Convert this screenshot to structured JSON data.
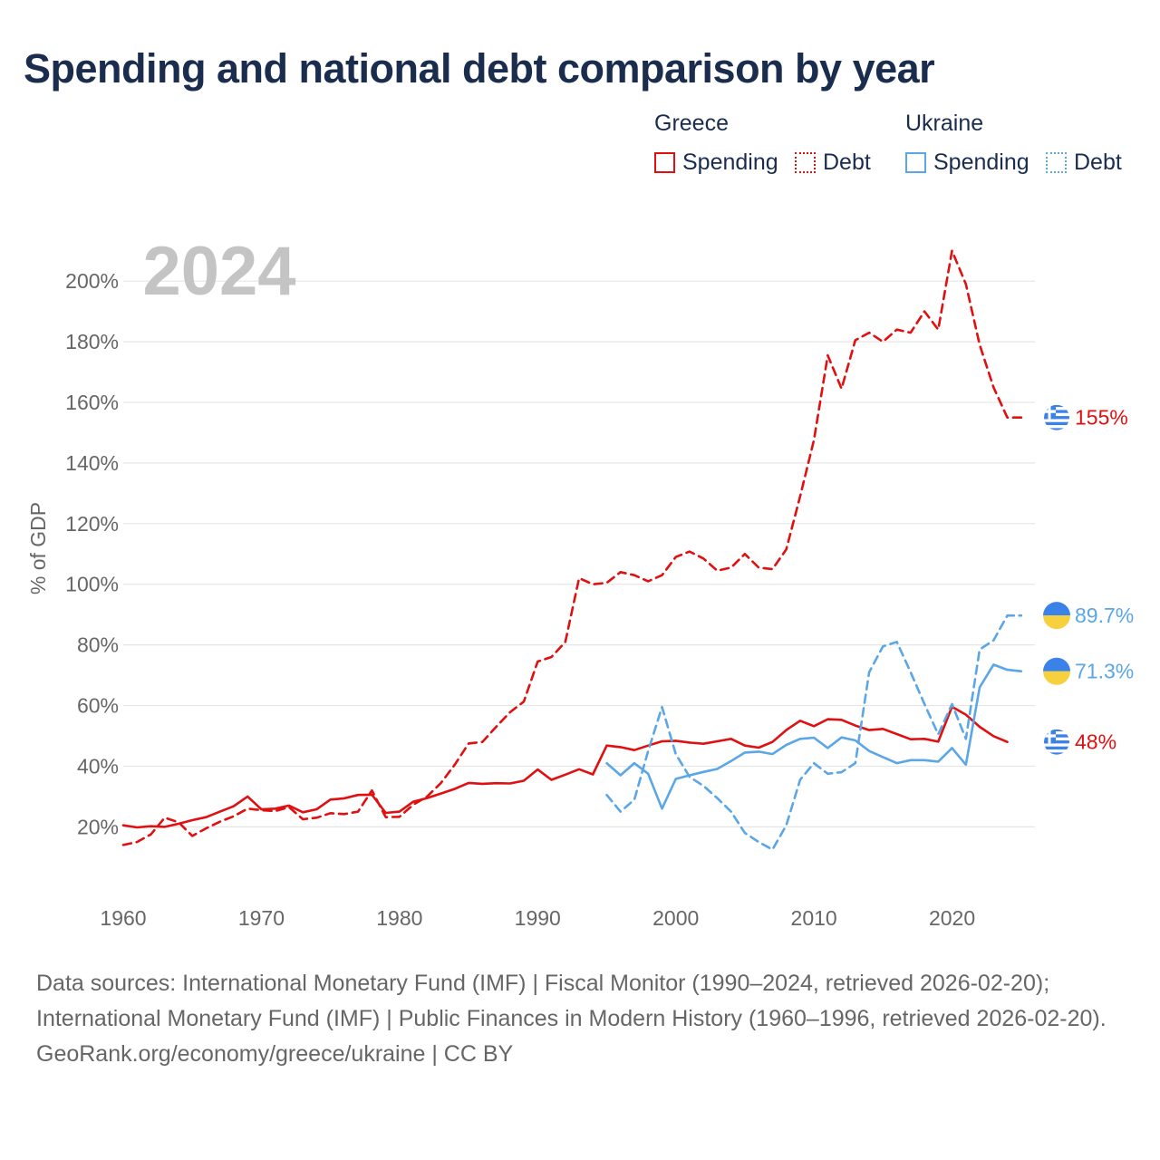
{
  "title": "Spending and national debt comparison by year",
  "legend": {
    "groups": [
      {
        "country": "Greece",
        "spending_label": "Spending",
        "debt_label": "Debt",
        "color": "#e01010"
      },
      {
        "country": "Ukraine",
        "spending_label": "Spending",
        "debt_label": "Debt",
        "color": "#5aa6e6"
      }
    ]
  },
  "year_watermark": "2024",
  "footer": {
    "sources": "Data sources: International Monetary Fund (IMF) | Fiscal Monitor (1990–2024, retrieved 2026-02-20); International Monetary Fund (IMF) | Public Finances in Modern History (1960–1996, retrieved 2026-02-20).",
    "credit": "GeoRank.org/economy/greece/ukraine | CC BY"
  },
  "chart_data": {
    "type": "line",
    "ylabel": "% of GDP",
    "xlabel": "",
    "xlim": [
      1960,
      2026
    ],
    "ylim": [
      -5,
      215
    ],
    "x_ticks": [
      1960,
      1970,
      1980,
      1990,
      2000,
      2010,
      2020
    ],
    "y_ticks": [
      20,
      40,
      60,
      80,
      100,
      120,
      140,
      160,
      180,
      200
    ],
    "y_tick_labels": [
      "20%",
      "40%",
      "60%",
      "80%",
      "100%",
      "120%",
      "140%",
      "160%",
      "180%",
      "200%"
    ],
    "series": [
      {
        "name": "Greece Spending",
        "country": "Greece",
        "style": "solid",
        "color": "#e01010",
        "end_label": "48%",
        "points": [
          [
            1960,
            20.5
          ],
          [
            1961,
            19.8
          ],
          [
            1962,
            20.2
          ],
          [
            1963,
            20.0
          ],
          [
            1964,
            21.0
          ],
          [
            1965,
            22.2
          ],
          [
            1966,
            23.2
          ],
          [
            1967,
            25.0
          ],
          [
            1968,
            26.8
          ],
          [
            1969,
            30.0
          ],
          [
            1970,
            25.8
          ],
          [
            1971,
            26.0
          ],
          [
            1972,
            27.0
          ],
          [
            1973,
            24.8
          ],
          [
            1974,
            25.8
          ],
          [
            1975,
            29.0
          ],
          [
            1976,
            29.4
          ],
          [
            1977,
            30.5
          ],
          [
            1978,
            30.6
          ],
          [
            1979,
            24.6
          ],
          [
            1980,
            25.0
          ],
          [
            1981,
            28.3
          ],
          [
            1982,
            29.5
          ],
          [
            1983,
            31.0
          ],
          [
            1984,
            32.5
          ],
          [
            1985,
            34.5
          ],
          [
            1986,
            34.2
          ],
          [
            1987,
            34.4
          ],
          [
            1988,
            34.3
          ],
          [
            1989,
            35.2
          ],
          [
            1990,
            38.9
          ],
          [
            1991,
            35.5
          ],
          [
            1992,
            37.2
          ],
          [
            1993,
            39.0
          ],
          [
            1994,
            37.3
          ],
          [
            1995,
            46.8
          ],
          [
            1996,
            46.3
          ],
          [
            1997,
            45.3
          ],
          [
            1998,
            46.8
          ],
          [
            1999,
            48.2
          ],
          [
            2000,
            48.4
          ],
          [
            2001,
            47.8
          ],
          [
            2002,
            47.4
          ],
          [
            2003,
            48.2
          ],
          [
            2004,
            49.0
          ],
          [
            2005,
            46.8
          ],
          [
            2006,
            46.1
          ],
          [
            2007,
            48.0
          ],
          [
            2008,
            51.9
          ],
          [
            2009,
            55.0
          ],
          [
            2010,
            53.2
          ],
          [
            2011,
            55.5
          ],
          [
            2012,
            55.3
          ],
          [
            2013,
            53.4
          ],
          [
            2014,
            51.9
          ],
          [
            2015,
            52.3
          ],
          [
            2016,
            50.6
          ],
          [
            2017,
            48.9
          ],
          [
            2018,
            49.0
          ],
          [
            2019,
            48.1
          ],
          [
            2020,
            59.6
          ],
          [
            2021,
            57.0
          ],
          [
            2022,
            53.0
          ],
          [
            2023,
            49.9
          ],
          [
            2024,
            48.0
          ]
        ]
      },
      {
        "name": "Greece Debt",
        "country": "Greece",
        "style": "dashed",
        "color": "#e01010",
        "end_label": "155%",
        "points": [
          [
            1960,
            14.0
          ],
          [
            1961,
            15.0
          ],
          [
            1962,
            17.5
          ],
          [
            1963,
            23.0
          ],
          [
            1964,
            21.5
          ],
          [
            1965,
            17.0
          ],
          [
            1966,
            19.5
          ],
          [
            1967,
            21.7
          ],
          [
            1968,
            23.5
          ],
          [
            1969,
            26.0
          ],
          [
            1970,
            25.5
          ],
          [
            1971,
            25.2
          ],
          [
            1972,
            26.5
          ],
          [
            1973,
            22.5
          ],
          [
            1974,
            23.0
          ],
          [
            1975,
            24.5
          ],
          [
            1976,
            24.2
          ],
          [
            1977,
            25.0
          ],
          [
            1978,
            32.0
          ],
          [
            1979,
            23.2
          ],
          [
            1980,
            23.3
          ],
          [
            1981,
            27.3
          ],
          [
            1982,
            30.0
          ],
          [
            1983,
            34.5
          ],
          [
            1984,
            40.5
          ],
          [
            1985,
            47.5
          ],
          [
            1986,
            48.0
          ],
          [
            1987,
            53.0
          ],
          [
            1988,
            57.8
          ],
          [
            1989,
            61.3
          ],
          [
            1990,
            74.5
          ],
          [
            1991,
            76.0
          ],
          [
            1992,
            81.0
          ],
          [
            1993,
            102.0
          ],
          [
            1994,
            100.0
          ],
          [
            1995,
            100.5
          ],
          [
            1996,
            104.0
          ],
          [
            1997,
            103.0
          ],
          [
            1998,
            101.0
          ],
          [
            1999,
            103.0
          ],
          [
            2000,
            109.0
          ],
          [
            2001,
            110.8
          ],
          [
            2002,
            108.5
          ],
          [
            2003,
            104.5
          ],
          [
            2004,
            105.5
          ],
          [
            2005,
            110.0
          ],
          [
            2006,
            105.5
          ],
          [
            2007,
            105.0
          ],
          [
            2008,
            111.5
          ],
          [
            2009,
            129.0
          ],
          [
            2010,
            147.5
          ],
          [
            2011,
            175.5
          ],
          [
            2012,
            164.5
          ],
          [
            2013,
            180.5
          ],
          [
            2014,
            183.0
          ],
          [
            2015,
            180.0
          ],
          [
            2016,
            184.0
          ],
          [
            2017,
            183.0
          ],
          [
            2018,
            190.0
          ],
          [
            2019,
            184.0
          ],
          [
            2020,
            210.0
          ],
          [
            2021,
            199.0
          ],
          [
            2022,
            179.0
          ],
          [
            2023,
            165.0
          ],
          [
            2024,
            155.0
          ],
          [
            2025,
            155.0
          ]
        ]
      },
      {
        "name": "Ukraine Spending",
        "country": "Ukraine",
        "style": "solid",
        "color": "#5aa6e6",
        "end_label": "71.3%",
        "points": [
          [
            1995,
            41.0
          ],
          [
            1996,
            37.0
          ],
          [
            1997,
            41.0
          ],
          [
            1998,
            37.5
          ],
          [
            1999,
            26.0
          ],
          [
            2000,
            35.8
          ],
          [
            2001,
            37.0
          ],
          [
            2002,
            38.1
          ],
          [
            2003,
            39.1
          ],
          [
            2004,
            41.7
          ],
          [
            2005,
            44.5
          ],
          [
            2006,
            44.8
          ],
          [
            2007,
            44.0
          ],
          [
            2008,
            47.0
          ],
          [
            2009,
            49.0
          ],
          [
            2010,
            49.4
          ],
          [
            2011,
            46.0
          ],
          [
            2012,
            49.5
          ],
          [
            2013,
            48.5
          ],
          [
            2014,
            45.0
          ],
          [
            2015,
            43.0
          ],
          [
            2016,
            41.0
          ],
          [
            2017,
            42.0
          ],
          [
            2018,
            42.0
          ],
          [
            2019,
            41.5
          ],
          [
            2020,
            46.0
          ],
          [
            2021,
            40.5
          ],
          [
            2022,
            66.0
          ],
          [
            2023,
            73.5
          ],
          [
            2024,
            71.8
          ],
          [
            2025,
            71.3
          ]
        ]
      },
      {
        "name": "Ukraine Debt",
        "country": "Ukraine",
        "style": "dashed",
        "color": "#5aa6e6",
        "end_label": "89.7%",
        "points": [
          [
            1995,
            30.5
          ],
          [
            1996,
            25.0
          ],
          [
            1997,
            29.0
          ],
          [
            1998,
            45.0
          ],
          [
            1999,
            59.5
          ],
          [
            2000,
            44.0
          ],
          [
            2001,
            36.5
          ],
          [
            2002,
            33.5
          ],
          [
            2003,
            29.5
          ],
          [
            2004,
            25.0
          ],
          [
            2005,
            18.0
          ],
          [
            2006,
            15.0
          ],
          [
            2007,
            12.5
          ],
          [
            2008,
            20.5
          ],
          [
            2009,
            35.5
          ],
          [
            2010,
            41.0
          ],
          [
            2011,
            37.5
          ],
          [
            2012,
            38.0
          ],
          [
            2013,
            41.0
          ],
          [
            2014,
            71.0
          ],
          [
            2015,
            79.5
          ],
          [
            2016,
            81.0
          ],
          [
            2017,
            71.0
          ],
          [
            2018,
            60.5
          ],
          [
            2019,
            50.5
          ],
          [
            2020,
            60.5
          ],
          [
            2021,
            49.0
          ],
          [
            2022,
            78.5
          ],
          [
            2023,
            81.5
          ],
          [
            2024,
            89.7
          ],
          [
            2025,
            89.7
          ]
        ]
      }
    ]
  }
}
